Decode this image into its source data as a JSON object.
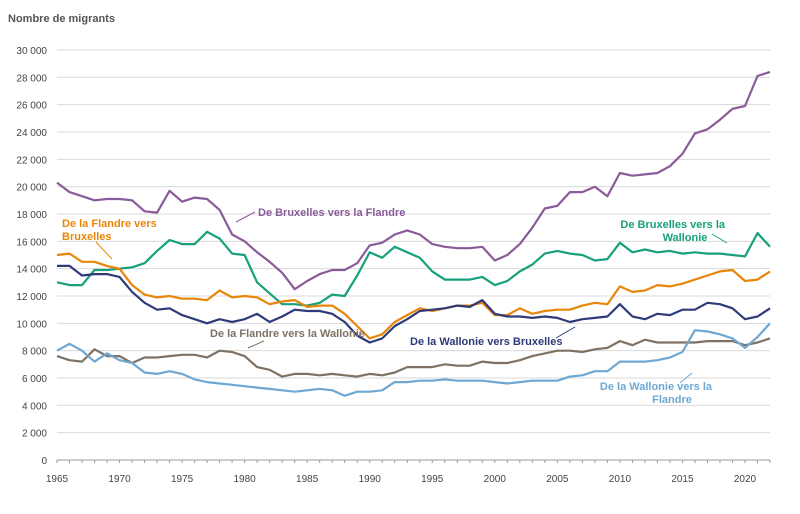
{
  "chart_data": {
    "type": "line",
    "ylabel": "Nombre de migrants",
    "ylim": [
      0,
      30000
    ],
    "yticks": [
      0,
      2000,
      4000,
      6000,
      8000,
      10000,
      12000,
      14000,
      16000,
      18000,
      20000,
      22000,
      24000,
      26000,
      28000,
      30000
    ],
    "ytick_labels": [
      "0",
      "2 000",
      "4 000",
      "6 000",
      "8 000",
      "10 000",
      "12 000",
      "14 000",
      "16 000",
      "18 000",
      "20 000",
      "22 000",
      "24 000",
      "26 000",
      "28 000",
      "30 000"
    ],
    "xlim": [
      1965,
      2022
    ],
    "xticks": [
      1965,
      1970,
      1975,
      1980,
      1985,
      1990,
      1995,
      2000,
      2005,
      2010,
      2015,
      2020
    ],
    "grid": true,
    "x": [
      1965,
      1966,
      1967,
      1968,
      1969,
      1970,
      1971,
      1972,
      1973,
      1974,
      1975,
      1976,
      1977,
      1978,
      1979,
      1980,
      1981,
      1982,
      1983,
      1984,
      1985,
      1986,
      1987,
      1988,
      1989,
      1990,
      1991,
      1992,
      1993,
      1994,
      1995,
      1996,
      1997,
      1998,
      1999,
      2000,
      2001,
      2002,
      2003,
      2004,
      2005,
      2006,
      2007,
      2008,
      2009,
      2010,
      2011,
      2012,
      2013,
      2014,
      2015,
      2016,
      2017,
      2018,
      2019,
      2020,
      2021,
      2022
    ],
    "series": [
      {
        "name": "De Bruxelles vers la Flandre",
        "color": "#8a5a9a",
        "label_lines": [
          "De Bruxelles vers la Flandre"
        ],
        "values": [
          20300,
          19600,
          19300,
          19000,
          19100,
          19100,
          19000,
          18200,
          18100,
          19700,
          18900,
          19200,
          19100,
          18300,
          16500,
          16000,
          15200,
          14500,
          13700,
          12500,
          13100,
          13600,
          13900,
          13900,
          14400,
          15700,
          15900,
          16500,
          16800,
          16500,
          15800,
          15600,
          15500,
          15500,
          15600,
          14600,
          15000,
          15800,
          17000,
          18400,
          18600,
          19600,
          19600,
          20000,
          19300,
          21000,
          20800,
          20900,
          21000,
          21500,
          22400,
          23900,
          24200,
          24900,
          25700,
          25900,
          28100,
          28400
        ]
      },
      {
        "name": "De Bruxelles vers la Wallonie",
        "color": "#17a07c",
        "label_lines": [
          "De Bruxelles vers la",
          "Wallonie"
        ],
        "values": [
          13000,
          12800,
          12800,
          13900,
          13900,
          14000,
          14100,
          14400,
          15300,
          16100,
          15800,
          15800,
          16700,
          16200,
          15100,
          15000,
          13000,
          12200,
          11400,
          11400,
          11300,
          11500,
          12100,
          12000,
          13500,
          15200,
          14800,
          15600,
          15200,
          14800,
          13800,
          13200,
          13200,
          13200,
          13400,
          12800,
          13100,
          13800,
          14300,
          15100,
          15300,
          15100,
          15000,
          14600,
          14700,
          15900,
          15200,
          15400,
          15200,
          15300,
          15100,
          15200,
          15100,
          15100,
          15000,
          14900,
          16600,
          15600
        ]
      },
      {
        "name": "De la Flandre vers Bruxelles",
        "color": "#e8860a",
        "label_lines": [
          "De la Flandre vers",
          "Bruxelles"
        ],
        "values": [
          15000,
          15100,
          14500,
          14500,
          14200,
          14000,
          12800,
          12100,
          11900,
          12000,
          11800,
          11800,
          11700,
          12400,
          11900,
          12000,
          11900,
          11400,
          11600,
          11700,
          11200,
          11300,
          11300,
          10700,
          9800,
          8900,
          9200,
          10100,
          10600,
          11100,
          10900,
          11100,
          11300,
          11300,
          11500,
          10600,
          10600,
          11100,
          10700,
          10900,
          11000,
          11000,
          11300,
          11500,
          11400,
          12700,
          12300,
          12400,
          12800,
          12700,
          12900,
          13200,
          13500,
          13800,
          13900,
          13100,
          13200,
          13800
        ]
      },
      {
        "name": "De la Wallonie vers Bruxelles",
        "color": "#2e3b78",
        "label_lines": [
          "De la Wallonie vers Bruxelles"
        ],
        "values": [
          14200,
          14200,
          13500,
          13600,
          13600,
          13400,
          12300,
          11500,
          11000,
          11100,
          10600,
          10300,
          10000,
          10300,
          10100,
          10300,
          10700,
          10100,
          10500,
          11000,
          10900,
          10900,
          10700,
          10100,
          9100,
          8600,
          8900,
          9800,
          10300,
          10900,
          11000,
          11100,
          11300,
          11200,
          11700,
          10700,
          10500,
          10500,
          10400,
          10500,
          10400,
          10100,
          10300,
          10400,
          10500,
          11400,
          10500,
          10300,
          10700,
          10600,
          11000,
          11000,
          11500,
          11400,
          11100,
          10300,
          10500,
          11100
        ]
      },
      {
        "name": "De la Flandre vers la Wallonie",
        "color": "#7f7264",
        "label_lines": [
          "De la Flandre vers la Wallonie"
        ],
        "values": [
          7600,
          7300,
          7200,
          8100,
          7600,
          7600,
          7100,
          7500,
          7500,
          7600,
          7700,
          7700,
          7500,
          8000,
          7900,
          7600,
          6800,
          6600,
          6100,
          6300,
          6300,
          6200,
          6300,
          6200,
          6100,
          6300,
          6200,
          6400,
          6800,
          6800,
          6800,
          7000,
          6900,
          6900,
          7200,
          7100,
          7100,
          7300,
          7600,
          7800,
          8000,
          8000,
          7900,
          8100,
          8200,
          8700,
          8400,
          8800,
          8600,
          8600,
          8600,
          8600,
          8700,
          8700,
          8700,
          8400,
          8600,
          8900
        ]
      },
      {
        "name": "De la Wallonie vers la Flandre",
        "color": "#6ea8d2",
        "label_lines": [
          "De la Wallonie vers la",
          "Flandre"
        ],
        "values": [
          8000,
          8500,
          8000,
          7200,
          7800,
          7300,
          7100,
          6400,
          6300,
          6500,
          6300,
          5900,
          5700,
          5600,
          5500,
          5400,
          5300,
          5200,
          5100,
          5000,
          5100,
          5200,
          5100,
          4700,
          5000,
          5000,
          5100,
          5700,
          5700,
          5800,
          5800,
          5900,
          5800,
          5800,
          5800,
          5700,
          5600,
          5700,
          5800,
          5800,
          5800,
          6100,
          6200,
          6500,
          6500,
          7200,
          7200,
          7200,
          7300,
          7500,
          7900,
          9500,
          9400,
          9200,
          8900,
          8200,
          9000,
          10000
        ]
      }
    ]
  }
}
